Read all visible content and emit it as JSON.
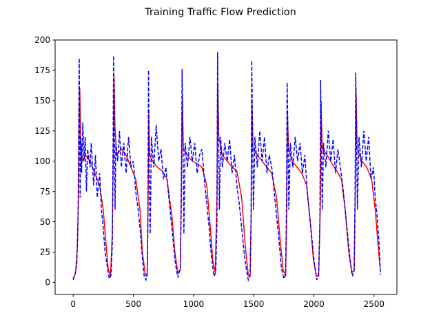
{
  "chart_data": {
    "type": "line",
    "title": "Training Traffic Flow Prediction",
    "xlabel": "",
    "ylabel": "",
    "xlim": [
      -150,
      2690
    ],
    "ylim": [
      -10,
      200
    ],
    "xticks": [
      0,
      500,
      1000,
      1500,
      2000,
      2500
    ],
    "yticks": [
      0,
      25,
      50,
      75,
      100,
      125,
      150,
      175,
      200
    ],
    "grid": false,
    "legend": "none",
    "series": [
      {
        "color": "#ff0000",
        "style": "solid",
        "points": [
          [
            0,
            3
          ],
          [
            20,
            8
          ],
          [
            35,
            30
          ],
          [
            45,
            75
          ],
          [
            50,
            130
          ],
          [
            55,
            160
          ],
          [
            62,
            120
          ],
          [
            75,
            100
          ],
          [
            100,
            105
          ],
          [
            140,
            100
          ],
          [
            180,
            90
          ],
          [
            220,
            80
          ],
          [
            250,
            60
          ],
          [
            270,
            35
          ],
          [
            290,
            12
          ],
          [
            310,
            5
          ],
          [
            325,
            40
          ],
          [
            335,
            120
          ],
          [
            340,
            170
          ],
          [
            347,
            130
          ],
          [
            360,
            105
          ],
          [
            400,
            110
          ],
          [
            440,
            105
          ],
          [
            480,
            95
          ],
          [
            520,
            85
          ],
          [
            555,
            60
          ],
          [
            575,
            25
          ],
          [
            600,
            6
          ],
          [
            615,
            5
          ],
          [
            622,
            60
          ],
          [
            628,
            140
          ],
          [
            635,
            105
          ],
          [
            660,
            100
          ],
          [
            700,
            95
          ],
          [
            740,
            92
          ],
          [
            780,
            85
          ],
          [
            820,
            55
          ],
          [
            845,
            25
          ],
          [
            870,
            8
          ],
          [
            890,
            10
          ],
          [
            900,
            90
          ],
          [
            907,
            155
          ],
          [
            915,
            110
          ],
          [
            950,
            105
          ],
          [
            990,
            100
          ],
          [
            1030,
            98
          ],
          [
            1070,
            95
          ],
          [
            1110,
            80
          ],
          [
            1140,
            45
          ],
          [
            1160,
            18
          ],
          [
            1180,
            8
          ],
          [
            1195,
            70
          ],
          [
            1200,
            165
          ],
          [
            1210,
            120
          ],
          [
            1240,
            105
          ],
          [
            1280,
            100
          ],
          [
            1320,
            95
          ],
          [
            1360,
            92
          ],
          [
            1400,
            70
          ],
          [
            1430,
            30
          ],
          [
            1455,
            6
          ],
          [
            1470,
            5
          ],
          [
            1480,
            60
          ],
          [
            1485,
            150
          ],
          [
            1495,
            110
          ],
          [
            1530,
            105
          ],
          [
            1570,
            100
          ],
          [
            1610,
            95
          ],
          [
            1650,
            90
          ],
          [
            1690,
            70
          ],
          [
            1720,
            35
          ],
          [
            1745,
            10
          ],
          [
            1765,
            5
          ],
          [
            1775,
            60
          ],
          [
            1780,
            140
          ],
          [
            1790,
            110
          ],
          [
            1820,
            100
          ],
          [
            1860,
            95
          ],
          [
            1900,
            90
          ],
          [
            1940,
            80
          ],
          [
            1970,
            50
          ],
          [
            1995,
            20
          ],
          [
            2020,
            5
          ],
          [
            2040,
            5
          ],
          [
            2055,
            70
          ],
          [
            2060,
            150
          ],
          [
            2070,
            110
          ],
          [
            2110,
            105
          ],
          [
            2150,
            98
          ],
          [
            2190,
            92
          ],
          [
            2230,
            85
          ],
          [
            2260,
            60
          ],
          [
            2290,
            25
          ],
          [
            2315,
            8
          ],
          [
            2335,
            10
          ],
          [
            2345,
            80
          ],
          [
            2350,
            160
          ],
          [
            2360,
            110
          ],
          [
            2400,
            100
          ],
          [
            2440,
            95
          ],
          [
            2480,
            85
          ],
          [
            2510,
            60
          ],
          [
            2530,
            35
          ],
          [
            2550,
            12
          ]
        ]
      },
      {
        "color": "#0000ff",
        "style": "dashed",
        "points": [
          [
            0,
            2
          ],
          [
            15,
            6
          ],
          [
            30,
            15
          ],
          [
            40,
            50
          ],
          [
            45,
            110
          ],
          [
            50,
            185
          ],
          [
            54,
            135
          ],
          [
            58,
            70
          ],
          [
            62,
            120
          ],
          [
            70,
            90
          ],
          [
            80,
            132
          ],
          [
            90,
            100
          ],
          [
            100,
            120
          ],
          [
            110,
            75
          ],
          [
            120,
            110
          ],
          [
            140,
            95
          ],
          [
            150,
            115
          ],
          [
            170,
            80
          ],
          [
            185,
            105
          ],
          [
            200,
            70
          ],
          [
            220,
            90
          ],
          [
            235,
            60
          ],
          [
            250,
            45
          ],
          [
            265,
            25
          ],
          [
            285,
            12
          ],
          [
            300,
            3
          ],
          [
            315,
            6
          ],
          [
            325,
            30
          ],
          [
            330,
            90
          ],
          [
            336,
            187
          ],
          [
            342,
            130
          ],
          [
            348,
            60
          ],
          [
            355,
            115
          ],
          [
            370,
            100
          ],
          [
            385,
            125
          ],
          [
            400,
            95
          ],
          [
            420,
            115
          ],
          [
            440,
            90
          ],
          [
            460,
            120
          ],
          [
            480,
            95
          ],
          [
            500,
            100
          ],
          [
            520,
            75
          ],
          [
            540,
            60
          ],
          [
            560,
            40
          ],
          [
            575,
            20
          ],
          [
            590,
            5
          ],
          [
            605,
            2
          ],
          [
            615,
            8
          ],
          [
            620,
            40
          ],
          [
            626,
            175
          ],
          [
            632,
            90
          ],
          [
            640,
            40
          ],
          [
            650,
            120
          ],
          [
            670,
            95
          ],
          [
            690,
            130
          ],
          [
            710,
            100
          ],
          [
            730,
            110
          ],
          [
            750,
            85
          ],
          [
            770,
            95
          ],
          [
            790,
            75
          ],
          [
            810,
            55
          ],
          [
            830,
            35
          ],
          [
            850,
            15
          ],
          [
            870,
            4
          ],
          [
            890,
            12
          ],
          [
            898,
            60
          ],
          [
            905,
            176
          ],
          [
            912,
            120
          ],
          [
            920,
            40
          ],
          [
            930,
            115
          ],
          [
            950,
            95
          ],
          [
            970,
            120
          ],
          [
            990,
            100
          ],
          [
            1010,
            115
          ],
          [
            1030,
            90
          ],
          [
            1050,
            105
          ],
          [
            1070,
            110
          ],
          [
            1090,
            85
          ],
          [
            1110,
            65
          ],
          [
            1130,
            45
          ],
          [
            1150,
            20
          ],
          [
            1170,
            5
          ],
          [
            1185,
            8
          ],
          [
            1195,
            50
          ],
          [
            1200,
            190
          ],
          [
            1207,
            130
          ],
          [
            1215,
            60
          ],
          [
            1225,
            120
          ],
          [
            1240,
            95
          ],
          [
            1260,
            115
          ],
          [
            1280,
            100
          ],
          [
            1300,
            118
          ],
          [
            1320,
            90
          ],
          [
            1340,
            105
          ],
          [
            1360,
            80
          ],
          [
            1380,
            65
          ],
          [
            1400,
            45
          ],
          [
            1420,
            25
          ],
          [
            1440,
            10
          ],
          [
            1455,
            2
          ],
          [
            1470,
            6
          ],
          [
            1478,
            50
          ],
          [
            1484,
            183
          ],
          [
            1490,
            125
          ],
          [
            1498,
            60
          ],
          [
            1510,
            120
          ],
          [
            1530,
            95
          ],
          [
            1550,
            125
          ],
          [
            1570,
            100
          ],
          [
            1590,
            120
          ],
          [
            1610,
            90
          ],
          [
            1630,
            105
          ],
          [
            1650,
            95
          ],
          [
            1670,
            75
          ],
          [
            1690,
            55
          ],
          [
            1710,
            35
          ],
          [
            1730,
            12
          ],
          [
            1750,
            3
          ],
          [
            1765,
            6
          ],
          [
            1772,
            60
          ],
          [
            1778,
            165
          ],
          [
            1785,
            120
          ],
          [
            1792,
            60
          ],
          [
            1805,
            115
          ],
          [
            1825,
            95
          ],
          [
            1845,
            120
          ],
          [
            1865,
            100
          ],
          [
            1885,
            115
          ],
          [
            1905,
            90
          ],
          [
            1925,
            105
          ],
          [
            1945,
            75
          ],
          [
            1965,
            55
          ],
          [
            1985,
            35
          ],
          [
            2005,
            15
          ],
          [
            2025,
            2
          ],
          [
            2040,
            8
          ],
          [
            2050,
            50
          ],
          [
            2056,
            167
          ],
          [
            2062,
            120
          ],
          [
            2070,
            60
          ],
          [
            2080,
            115
          ],
          [
            2100,
            95
          ],
          [
            2120,
            125
          ],
          [
            2140,
            100
          ],
          [
            2160,
            118
          ],
          [
            2180,
            90
          ],
          [
            2200,
            110
          ],
          [
            2220,
            95
          ],
          [
            2240,
            80
          ],
          [
            2260,
            60
          ],
          [
            2280,
            40
          ],
          [
            2300,
            20
          ],
          [
            2320,
            5
          ],
          [
            2335,
            10
          ],
          [
            2342,
            70
          ],
          [
            2348,
            173
          ],
          [
            2355,
            120
          ],
          [
            2362,
            60
          ],
          [
            2375,
            120
          ],
          [
            2395,
            95
          ],
          [
            2415,
            125
          ],
          [
            2435,
            100
          ],
          [
            2455,
            120
          ],
          [
            2475,
            85
          ],
          [
            2495,
            95
          ],
          [
            2510,
            70
          ],
          [
            2525,
            55
          ],
          [
            2540,
            35
          ],
          [
            2550,
            15
          ],
          [
            2553,
            6
          ]
        ]
      }
    ]
  }
}
